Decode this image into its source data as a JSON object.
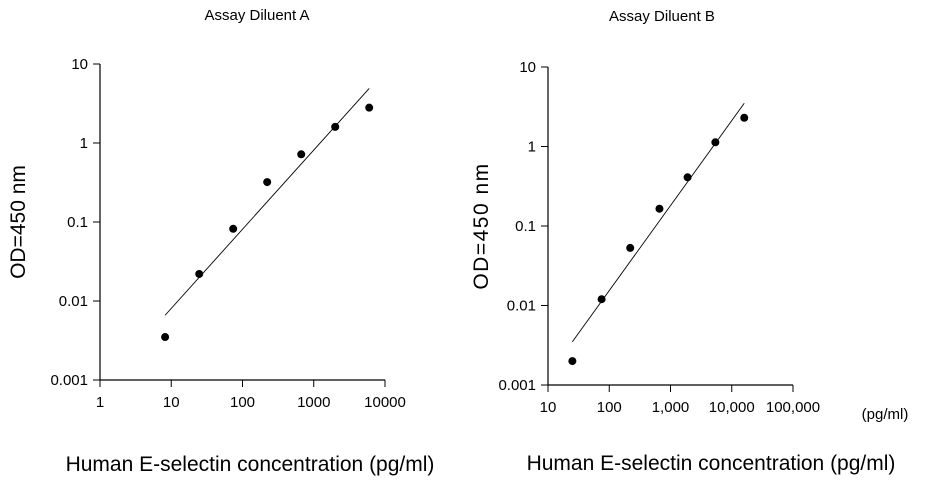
{
  "chart_data": [
    {
      "type": "scatter",
      "title": "Assay Diluent A",
      "xlabel": "Human E-selectin concentration (pg/ml)",
      "ylabel": "OD=450 nm",
      "x_scale": "log",
      "y_scale": "log",
      "xlim": [
        1,
        10000
      ],
      "ylim": [
        0.001,
        10
      ],
      "x_ticks": [
        "1",
        "10",
        "100",
        "1000",
        "10000"
      ],
      "y_ticks": [
        "10",
        "1",
        "0.1",
        "0.01",
        "0.001"
      ],
      "grid": false,
      "series": [
        {
          "x": [
            8.2,
            24.7,
            74,
            222,
            667,
            2000,
            6000
          ],
          "y": [
            0.0035,
            0.022,
            0.082,
            0.32,
            0.72,
            1.6,
            2.8
          ]
        }
      ],
      "trendline": {
        "x": [
          8.2,
          6000
        ],
        "y": [
          0.0066,
          4.9
        ]
      }
    },
    {
      "type": "scatter",
      "title": "Assay Diluent B",
      "xlabel": "Human E-selectin concentration (pg/ml)",
      "ylabel": "OD=450 nm",
      "x_unit": "(pg/ml)",
      "x_scale": "log",
      "y_scale": "log",
      "xlim": [
        10,
        100000
      ],
      "ylim": [
        0.001,
        10
      ],
      "x_ticks": [
        "10",
        "100",
        "1,000",
        "10,000",
        "100,000"
      ],
      "y_ticks": [
        "10",
        "1",
        "0.1",
        "0.01",
        "0.001"
      ],
      "grid": false,
      "series": [
        {
          "x": [
            25,
            75,
            220,
            660,
            1900,
            5400,
            16000
          ],
          "y": [
            0.002,
            0.012,
            0.053,
            0.165,
            0.41,
            1.13,
            2.3
          ]
        }
      ],
      "trendline": {
        "x": [
          25,
          16000
        ],
        "y": [
          0.0035,
          3.5
        ]
      }
    }
  ]
}
